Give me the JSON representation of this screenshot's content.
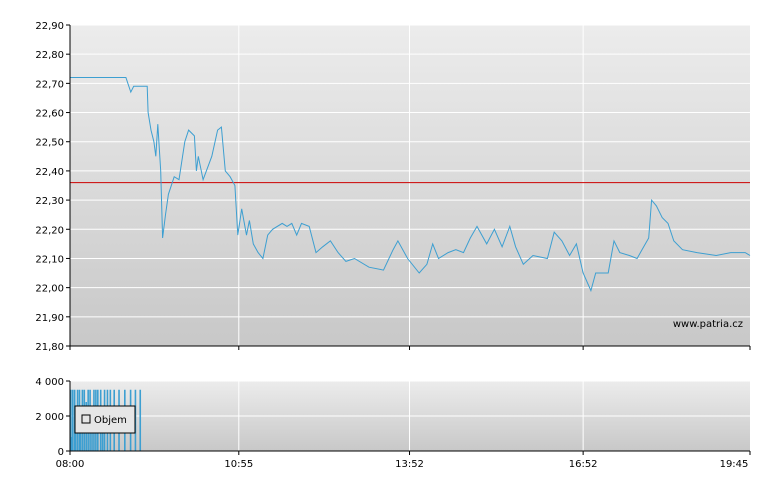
{
  "chart_data": [
    {
      "type": "line",
      "series": [
        {
          "color": "#3d9fd1",
          "points": [
            [
              "08:00",
              22.72
            ],
            [
              "08:30",
              22.72
            ],
            [
              "08:58",
              22.72
            ],
            [
              "09:03",
              22.67
            ],
            [
              "09:06",
              22.69
            ],
            [
              "09:13",
              22.69
            ],
            [
              "09:20",
              22.69
            ],
            [
              "09:21",
              22.6
            ],
            [
              "09:24",
              22.54
            ],
            [
              "09:27",
              22.5
            ],
            [
              "09:29",
              22.45
            ],
            [
              "09:31",
              22.56
            ],
            [
              "09:34",
              22.4
            ],
            [
              "09:36",
              22.17
            ],
            [
              "09:39",
              22.25
            ],
            [
              "09:42",
              22.32
            ],
            [
              "09:48",
              22.38
            ],
            [
              "09:53",
              22.37
            ],
            [
              "09:59",
              22.5
            ],
            [
              "10:03",
              22.54
            ],
            [
              "10:09",
              22.52
            ],
            [
              "10:11",
              22.4
            ],
            [
              "10:13",
              22.45
            ],
            [
              "10:18",
              22.37
            ],
            [
              "10:27",
              22.45
            ],
            [
              "10:33",
              22.54
            ],
            [
              "10:37",
              22.55
            ],
            [
              "10:41",
              22.4
            ],
            [
              "10:46",
              22.38
            ],
            [
              "10:51",
              22.35
            ],
            [
              "10:54",
              22.18
            ],
            [
              "10:58",
              22.27
            ],
            [
              "11:03",
              22.18
            ],
            [
              "11:06",
              22.23
            ],
            [
              "11:10",
              22.15
            ],
            [
              "11:15",
              22.12
            ],
            [
              "11:20",
              22.1
            ],
            [
              "11:25",
              22.18
            ],
            [
              "11:30",
              22.2
            ],
            [
              "11:40",
              22.22
            ],
            [
              "11:45",
              22.21
            ],
            [
              "11:50",
              22.22
            ],
            [
              "11:55",
              22.18
            ],
            [
              "12:00",
              22.22
            ],
            [
              "12:08",
              22.21
            ],
            [
              "12:15",
              22.12
            ],
            [
              "12:22",
              22.14
            ],
            [
              "12:30",
              22.16
            ],
            [
              "12:38",
              22.12
            ],
            [
              "12:46",
              22.09
            ],
            [
              "12:55",
              22.1
            ],
            [
              "13:10",
              22.07
            ],
            [
              "13:25",
              22.06
            ],
            [
              "13:35",
              22.13
            ],
            [
              "13:40",
              22.16
            ],
            [
              "13:50",
              22.1
            ],
            [
              "14:02",
              22.05
            ],
            [
              "14:10",
              22.08
            ],
            [
              "14:16",
              22.15
            ],
            [
              "14:22",
              22.1
            ],
            [
              "14:32",
              22.12
            ],
            [
              "14:40",
              22.13
            ],
            [
              "14:48",
              22.12
            ],
            [
              "14:55",
              22.17
            ],
            [
              "15:02",
              22.21
            ],
            [
              "15:12",
              22.15
            ],
            [
              "15:20",
              22.2
            ],
            [
              "15:28",
              22.14
            ],
            [
              "15:36",
              22.21
            ],
            [
              "15:42",
              22.14
            ],
            [
              "15:50",
              22.08
            ],
            [
              "16:00",
              22.11
            ],
            [
              "16:15",
              22.1
            ],
            [
              "16:22",
              22.19
            ],
            [
              "16:30",
              22.16
            ],
            [
              "16:38",
              22.11
            ],
            [
              "16:45",
              22.15
            ],
            [
              "16:52",
              22.05
            ],
            [
              "17:00",
              21.99
            ],
            [
              "17:05",
              22.05
            ],
            [
              "17:18",
              22.05
            ],
            [
              "17:24",
              22.16
            ],
            [
              "17:30",
              22.12
            ],
            [
              "17:40",
              22.11
            ],
            [
              "17:48",
              22.1
            ],
            [
              "17:53",
              22.13
            ],
            [
              "18:00",
              22.17
            ],
            [
              "18:03",
              22.3
            ],
            [
              "18:08",
              22.28
            ],
            [
              "18:14",
              22.24
            ],
            [
              "18:20",
              22.22
            ],
            [
              "18:26",
              22.16
            ],
            [
              "18:35",
              22.13
            ],
            [
              "18:50",
              22.12
            ],
            [
              "19:10",
              22.11
            ],
            [
              "19:25",
              22.12
            ],
            [
              "19:40",
              22.12
            ],
            [
              "19:45",
              22.11
            ]
          ]
        }
      ],
      "reference_line": {
        "value": 22.36,
        "color": "#cc0000"
      },
      "xlim": [
        "08:00",
        "19:45"
      ],
      "ylim": [
        21.8,
        22.9
      ],
      "yticks": [
        "21,80",
        "21,90",
        "22,00",
        "22,10",
        "22,20",
        "22,30",
        "22,40",
        "22,50",
        "22,60",
        "22,70",
        "22,80",
        "22,90"
      ],
      "grid": true,
      "annotation": "www.patria.cz"
    },
    {
      "type": "bar",
      "series": [
        {
          "name": "Objem",
          "color": "#3d9fd1",
          "bars": [
            [
              "08:00",
              3500
            ],
            [
              "08:01",
              800
            ],
            [
              "08:02",
              3500
            ],
            [
              "08:04",
              3500
            ],
            [
              "08:05",
              2200
            ],
            [
              "08:07",
              3500
            ],
            [
              "08:09",
              3500
            ],
            [
              "08:10",
              1500
            ],
            [
              "08:12",
              3500
            ],
            [
              "08:14",
              3500
            ],
            [
              "08:16",
              2800
            ],
            [
              "08:18",
              3500
            ],
            [
              "08:20",
              3500
            ],
            [
              "08:22",
              1200
            ],
            [
              "08:24",
              3500
            ],
            [
              "08:26",
              3500
            ],
            [
              "08:28",
              3500
            ],
            [
              "08:31",
              3500
            ],
            [
              "08:33",
              2000
            ],
            [
              "08:35",
              3500
            ],
            [
              "08:38",
              3500
            ],
            [
              "08:41",
              3500
            ],
            [
              "08:45",
              3500
            ],
            [
              "08:50",
              3500
            ],
            [
              "08:56",
              3500
            ],
            [
              "09:02",
              3500
            ],
            [
              "09:07",
              3500
            ],
            [
              "09:12",
              3500
            ]
          ]
        }
      ],
      "xlim": [
        "08:00",
        "19:45"
      ],
      "ylim": [
        0,
        4000
      ],
      "yticks": [
        "0",
        "2 000",
        "4 000"
      ],
      "xticks": [
        "08:00",
        "10:55",
        "13:52",
        "16:52",
        "19:45"
      ],
      "grid": true,
      "legend": {
        "placement": "left",
        "label": "Objem"
      }
    }
  ]
}
